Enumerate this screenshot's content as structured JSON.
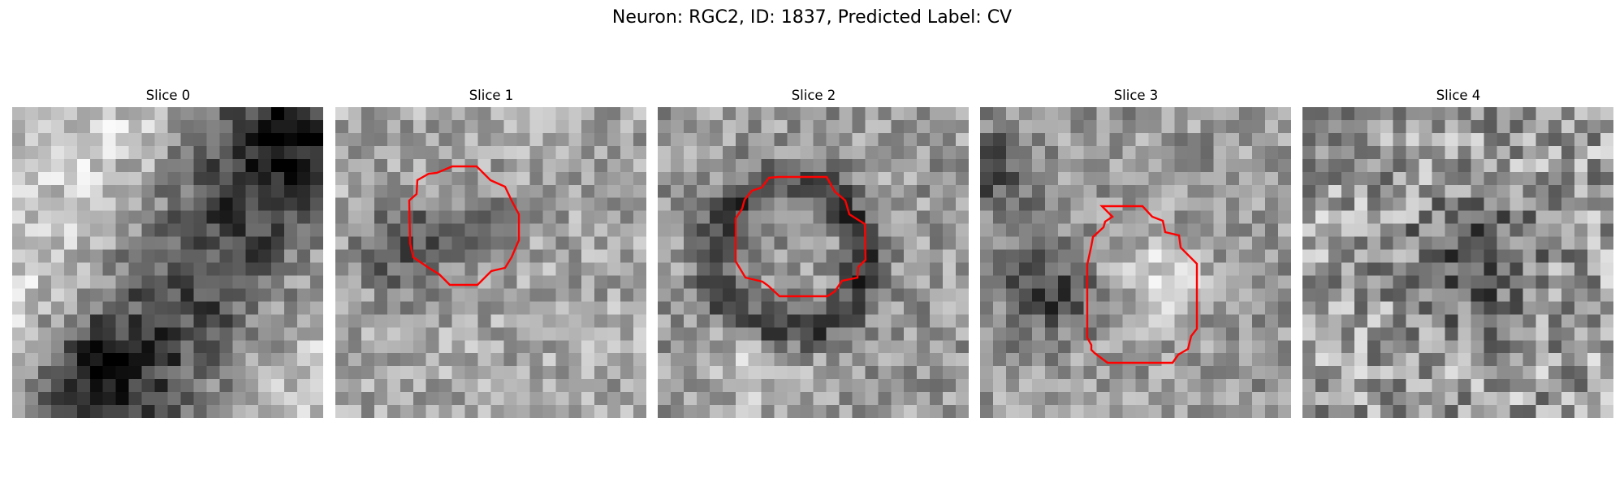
{
  "figure": {
    "title": "Neuron: RGC2, ID: 1837, Predicted Label: CV"
  },
  "panels": [
    {
      "title": "Slice 0",
      "has_contour": false
    },
    {
      "title": "Slice 1",
      "has_contour": true
    },
    {
      "title": "Slice 2",
      "has_contour": true
    },
    {
      "title": "Slice 3",
      "has_contour": true
    },
    {
      "title": "Slice 4",
      "has_contour": false
    }
  ],
  "colors": {
    "contour": "#ff0000",
    "background": "#ffffff"
  },
  "colormap": "gray"
}
